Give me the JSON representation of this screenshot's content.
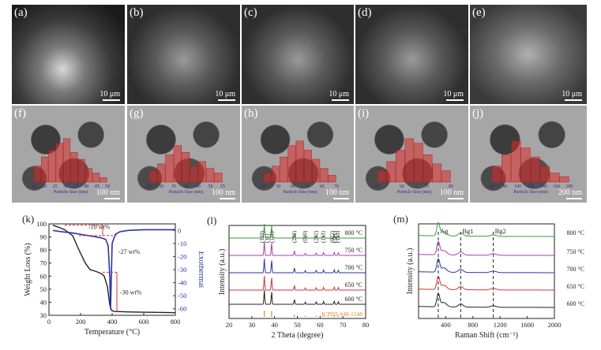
{
  "sem_panels": [
    {
      "label": "(a)",
      "scale": "10 μm"
    },
    {
      "label": "(b)",
      "scale": "10 μm"
    },
    {
      "label": "(c)",
      "scale": "10 μm"
    },
    {
      "label": "(d)",
      "scale": "10 μm"
    },
    {
      "label": "(e)",
      "scale": "10 μm"
    }
  ],
  "tem_panels": [
    {
      "label": "(f)",
      "scale": "100 nm",
      "xlabel": "Particle Size (nm)",
      "ticks": [
        "15",
        "20",
        "25",
        "30",
        "35",
        "40",
        "45",
        "50"
      ],
      "bars": [
        0.35,
        0.55,
        0.7,
        0.85,
        0.95,
        0.65,
        0.5,
        0.3,
        0.2,
        0.1
      ]
    },
    {
      "label": "(g)",
      "scale": "100 nm",
      "xlabel": "Particle Size (nm)",
      "ticks": [
        "25",
        "30",
        "35",
        "40",
        "45",
        "50",
        "55"
      ],
      "bars": [
        0.25,
        0.4,
        0.6,
        0.8,
        0.65,
        0.35,
        0.45,
        0.3,
        0.2
      ]
    },
    {
      "label": "(h)",
      "scale": "100 nm",
      "xlabel": "Particle Size (nm)",
      "ticks": [
        "20",
        "30",
        "40",
        "50",
        "60",
        "70"
      ],
      "bars": [
        0.2,
        0.35,
        0.55,
        0.8,
        0.9,
        0.7,
        0.5,
        0.3,
        0.15
      ]
    },
    {
      "label": "(i)",
      "scale": "100 nm",
      "xlabel": "Particle Size (nm)",
      "ticks": [
        "50",
        "60",
        "70",
        "80"
      ],
      "bars": [
        0.25,
        0.45,
        0.7,
        0.95,
        0.85,
        0.6,
        0.4,
        0.25
      ]
    },
    {
      "label": "(j)",
      "scale": "200 nm",
      "xlabel": "Particle Size (nm)",
      "ticks": [
        "60",
        "80",
        "100",
        "120",
        "140",
        "160",
        "180"
      ],
      "bars": [
        0.35,
        0.6,
        0.9,
        0.75,
        0.55,
        0.35,
        0.2,
        0.12
      ]
    }
  ],
  "chart_data": [
    {
      "type": "line",
      "panel": "(k)",
      "xlabel": "Temperature (°C)",
      "ylabel": "Weight Loss (%)",
      "y2label": "Exothermal",
      "xlim": [
        0,
        800
      ],
      "ylim": [
        30,
        100
      ],
      "y2lim": [
        -65,
        5
      ],
      "xticks": [
        0,
        200,
        400,
        600,
        800
      ],
      "yticks": [
        30,
        40,
        50,
        60,
        70,
        80,
        90,
        100
      ],
      "y2ticks": [
        0,
        -10,
        -20,
        -30,
        -40,
        -50,
        -60
      ],
      "annotations": [
        "-10 wt%",
        "-27 wt%",
        "-30 wt%"
      ],
      "series": [
        {
          "name": "Weight Loss",
          "color": "#222222",
          "x": [
            25,
            60,
            100,
            150,
            190,
            230,
            260,
            300,
            330,
            350,
            370,
            385,
            395,
            410,
            450,
            500,
            600,
            700,
            800
          ],
          "y": [
            99,
            97.5,
            95.5,
            91,
            80,
            70,
            65,
            63.5,
            62,
            60,
            52,
            38,
            34,
            33,
            32.8,
            32.6,
            32.4,
            32.2,
            32
          ]
        },
        {
          "name": "Exothermal",
          "color": "#2b35a6",
          "x": [
            25,
            80,
            150,
            200,
            250,
            300,
            340,
            360,
            375,
            385,
            390,
            395,
            400,
            420,
            450,
            500,
            600,
            700,
            800
          ],
          "y": [
            0,
            -1,
            -2,
            -3,
            -4,
            -5,
            -6,
            -7,
            -12,
            -35,
            -60,
            -35,
            -10,
            -3,
            -1,
            0,
            0.5,
            0.5,
            0.5
          ]
        }
      ]
    },
    {
      "type": "line",
      "panel": "(l)",
      "xlabel": "2 Theta (degree)",
      "ylabel": "Intensity (a.u.)",
      "xlim": [
        20,
        80
      ],
      "xticks": [
        20,
        30,
        40,
        50,
        60,
        70,
        80
      ],
      "peak_labels": [
        "(110)",
        "(11)",
        "(111)",
        "(202)",
        "(020)",
        "(202)",
        "(113)",
        "(022)",
        "(311)",
        "(113)"
      ],
      "reference": "JCPDS #48-1548",
      "series": [
        {
          "name": "800 °C",
          "color": "#3a9a3a"
        },
        {
          "name": "750 °C",
          "color": "#a340b0"
        },
        {
          "name": "700 °C",
          "color": "#2b35a6"
        },
        {
          "name": "650 °C",
          "color": "#d93030"
        },
        {
          "name": "600 °C",
          "color": "#222222"
        }
      ],
      "peaks": [
        35.5,
        38.7,
        48.7,
        53.5,
        58.3,
        61.5,
        66.2,
        68.0
      ]
    },
    {
      "type": "line",
      "panel": "(m)",
      "xlabel": "Raman Shift (cm⁻¹)",
      "ylabel": "Intensity (a.u.)",
      "xlim": [
        0,
        2000
      ],
      "xticks": [
        400,
        800,
        1200,
        1600,
        2000
      ],
      "modes": [
        "Ag",
        "Bg1",
        "Bg2"
      ],
      "mode_positions": [
        290,
        620,
        1100
      ],
      "series": [
        {
          "name": "800 °C",
          "color": "#3a9a3a"
        },
        {
          "name": "750 °C",
          "color": "#a340b0"
        },
        {
          "name": "700 °C",
          "color": "#2b35a6"
        },
        {
          "name": "650 °C",
          "color": "#d93030"
        },
        {
          "name": "600 °C",
          "color": "#222222"
        }
      ]
    }
  ]
}
